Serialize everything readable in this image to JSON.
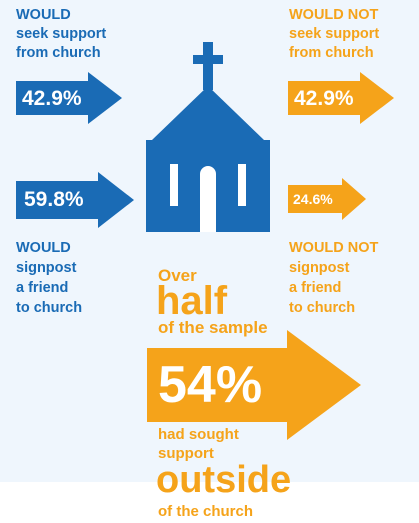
{
  "colors": {
    "would": "#1a6bb5",
    "would_not": "#f5a31a",
    "background": "#eff6fd"
  },
  "icon": "church-icon",
  "chart_data": {
    "type": "infographic",
    "groups": [
      {
        "measure": "seek support from church",
        "would": {
          "label": "WOULD\nseek support\nfrom church",
          "value": 42.9,
          "display": "42.9%"
        },
        "would_not": {
          "label": "WOULD NOT\nseek support\nfrom church",
          "value": 42.9,
          "display": "42.9%"
        }
      },
      {
        "measure": "signpost a friend to church",
        "would": {
          "label": "WOULD\nsignpost\na friend\nto church",
          "value": 59.8,
          "display": "59.8%"
        },
        "would_not": {
          "label": "WOULD NOT\nsignpost\na friend\nto church",
          "value": 24.6,
          "display": "24.6%"
        }
      }
    ],
    "highlight": {
      "over": "Over",
      "half": "half",
      "of_sample": "of the sample",
      "value": 54,
      "display": "54%",
      "had_sought": "had sought\nsupport",
      "outside": "outside",
      "of_church": "of the church"
    }
  }
}
